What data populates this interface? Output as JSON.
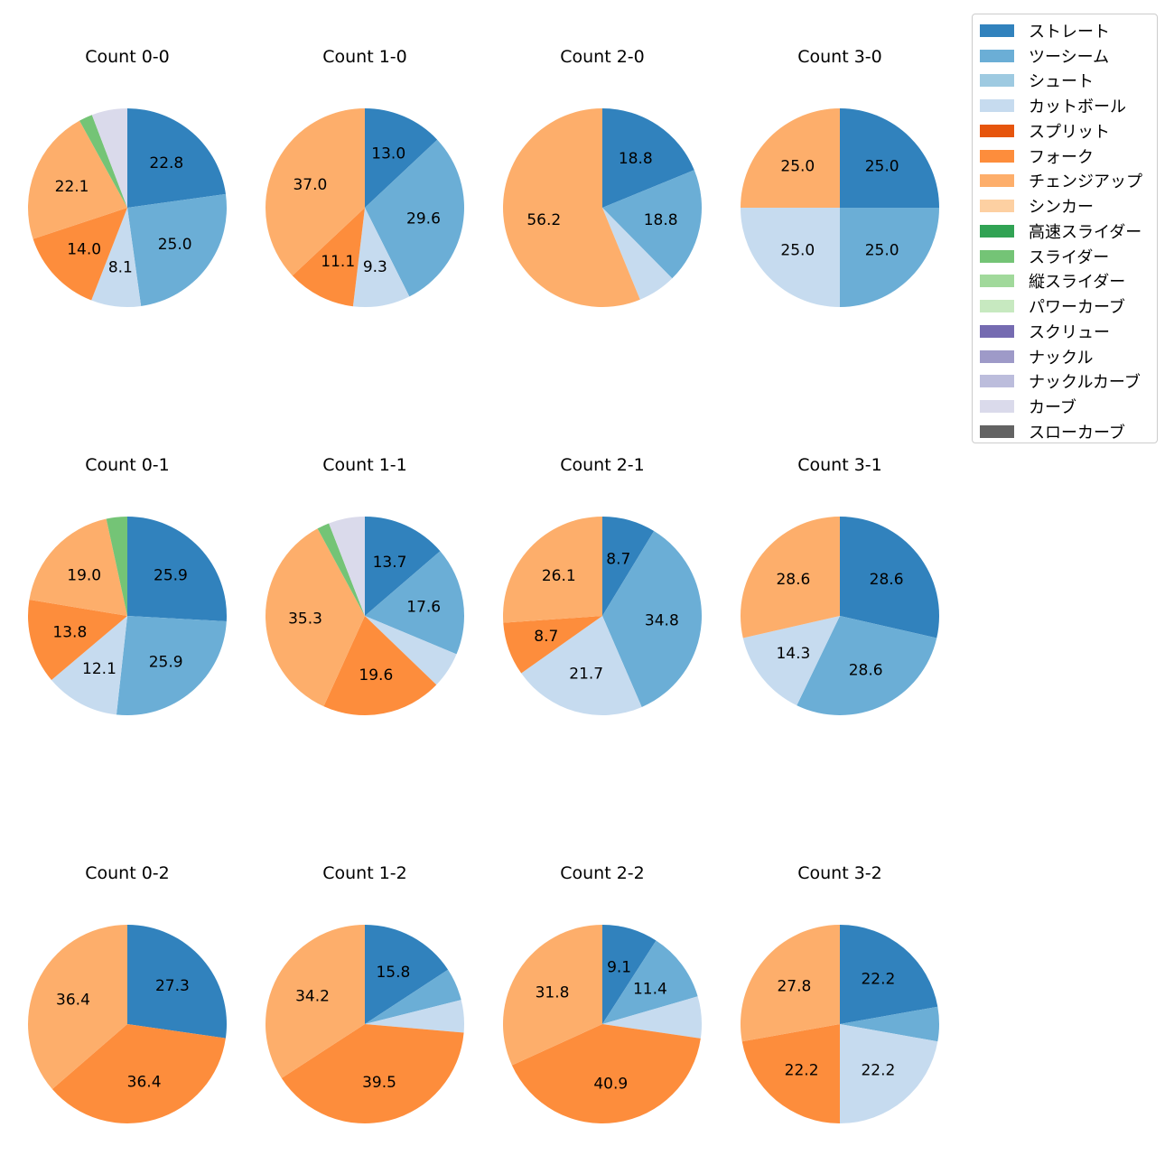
{
  "chart_data": {
    "type": "pie",
    "legend": {
      "position": "top-right",
      "entries": [
        {
          "name": "ストレート",
          "color": "#3182bd"
        },
        {
          "name": "ツーシーム",
          "color": "#6baed6"
        },
        {
          "name": "シュート",
          "color": "#9ecae1"
        },
        {
          "name": "カットボール",
          "color": "#c6dbef"
        },
        {
          "name": "スプリット",
          "color": "#e6550d"
        },
        {
          "name": "フォーク",
          "color": "#fd8d3c"
        },
        {
          "name": "チェンジアップ",
          "color": "#fdae6b"
        },
        {
          "name": "シンカー",
          "color": "#fdd0a2"
        },
        {
          "name": "高速スライダー",
          "color": "#31a354"
        },
        {
          "name": "スライダー",
          "color": "#74c476"
        },
        {
          "name": "縦スライダー",
          "color": "#a1d99b"
        },
        {
          "name": "パワーカーブ",
          "color": "#c7e9c0"
        },
        {
          "name": "スクリュー",
          "color": "#756bb1"
        },
        {
          "name": "ナックル",
          "color": "#9e9ac8"
        },
        {
          "name": "ナックルカーブ",
          "color": "#bcbddc"
        },
        {
          "name": "カーブ",
          "color": "#dadaeb"
        },
        {
          "name": "スローカーブ",
          "color": "#636363"
        }
      ]
    },
    "charts": [
      {
        "title": "Count 0-0",
        "slices": [
          {
            "pitch": "ストレート",
            "value": 22.8,
            "label": "22.8"
          },
          {
            "pitch": "ツーシーム",
            "value": 25.0,
            "label": "25.0"
          },
          {
            "pitch": "カットボール",
            "value": 8.1,
            "label": "8.1"
          },
          {
            "pitch": "フォーク",
            "value": 14.0,
            "label": "14.0"
          },
          {
            "pitch": "チェンジアップ",
            "value": 22.1,
            "label": "22.1"
          },
          {
            "pitch": "スライダー",
            "value": 2.2,
            "label": ""
          },
          {
            "pitch": "カーブ",
            "value": 5.8,
            "label": ""
          }
        ]
      },
      {
        "title": "Count 1-0",
        "slices": [
          {
            "pitch": "ストレート",
            "value": 13.0,
            "label": "13.0"
          },
          {
            "pitch": "ツーシーム",
            "value": 29.6,
            "label": "29.6"
          },
          {
            "pitch": "カットボール",
            "value": 9.3,
            "label": "9.3"
          },
          {
            "pitch": "フォーク",
            "value": 11.1,
            "label": "11.1"
          },
          {
            "pitch": "チェンジアップ",
            "value": 37.0,
            "label": "37.0"
          }
        ]
      },
      {
        "title": "Count 2-0",
        "slices": [
          {
            "pitch": "ストレート",
            "value": 18.8,
            "label": "18.8"
          },
          {
            "pitch": "ツーシーム",
            "value": 18.8,
            "label": "18.8"
          },
          {
            "pitch": "カットボール",
            "value": 6.2,
            "label": ""
          },
          {
            "pitch": "チェンジアップ",
            "value": 56.2,
            "label": "56.2"
          }
        ]
      },
      {
        "title": "Count 3-0",
        "slices": [
          {
            "pitch": "ストレート",
            "value": 25.0,
            "label": "25.0"
          },
          {
            "pitch": "ツーシーム",
            "value": 25.0,
            "label": "25.0"
          },
          {
            "pitch": "カットボール",
            "value": 25.0,
            "label": "25.0"
          },
          {
            "pitch": "チェンジアップ",
            "value": 25.0,
            "label": "25.0"
          }
        ]
      },
      {
        "title": "Count 0-1",
        "slices": [
          {
            "pitch": "ストレート",
            "value": 25.9,
            "label": "25.9"
          },
          {
            "pitch": "ツーシーム",
            "value": 25.9,
            "label": "25.9"
          },
          {
            "pitch": "カットボール",
            "value": 12.1,
            "label": "12.1"
          },
          {
            "pitch": "フォーク",
            "value": 13.8,
            "label": "13.8"
          },
          {
            "pitch": "チェンジアップ",
            "value": 19.0,
            "label": "19.0"
          },
          {
            "pitch": "スライダー",
            "value": 3.4,
            "label": ""
          }
        ]
      },
      {
        "title": "Count 1-1",
        "slices": [
          {
            "pitch": "ストレート",
            "value": 13.7,
            "label": "13.7"
          },
          {
            "pitch": "ツーシーム",
            "value": 17.6,
            "label": "17.6"
          },
          {
            "pitch": "カットボール",
            "value": 5.9,
            "label": ""
          },
          {
            "pitch": "フォーク",
            "value": 19.6,
            "label": "19.6"
          },
          {
            "pitch": "チェンジアップ",
            "value": 35.3,
            "label": "35.3"
          },
          {
            "pitch": "スライダー",
            "value": 2.0,
            "label": ""
          },
          {
            "pitch": "カーブ",
            "value": 5.9,
            "label": ""
          }
        ]
      },
      {
        "title": "Count 2-1",
        "slices": [
          {
            "pitch": "ストレート",
            "value": 8.7,
            "label": "8.7"
          },
          {
            "pitch": "ツーシーム",
            "value": 34.8,
            "label": "34.8"
          },
          {
            "pitch": "カットボール",
            "value": 21.7,
            "label": "21.7"
          },
          {
            "pitch": "フォーク",
            "value": 8.7,
            "label": "8.7"
          },
          {
            "pitch": "チェンジアップ",
            "value": 26.1,
            "label": "26.1"
          }
        ]
      },
      {
        "title": "Count 3-1",
        "slices": [
          {
            "pitch": "ストレート",
            "value": 28.6,
            "label": "28.6"
          },
          {
            "pitch": "ツーシーム",
            "value": 28.6,
            "label": "28.6"
          },
          {
            "pitch": "カットボール",
            "value": 14.3,
            "label": "14.3"
          },
          {
            "pitch": "チェンジアップ",
            "value": 28.6,
            "label": "28.6"
          }
        ]
      },
      {
        "title": "Count 0-2",
        "slices": [
          {
            "pitch": "ストレート",
            "value": 27.3,
            "label": "27.3"
          },
          {
            "pitch": "フォーク",
            "value": 36.4,
            "label": "36.4"
          },
          {
            "pitch": "チェンジアップ",
            "value": 36.4,
            "label": "36.4"
          }
        ]
      },
      {
        "title": "Count 1-2",
        "slices": [
          {
            "pitch": "ストレート",
            "value": 15.8,
            "label": "15.8"
          },
          {
            "pitch": "ツーシーム",
            "value": 5.3,
            "label": ""
          },
          {
            "pitch": "カットボール",
            "value": 5.3,
            "label": ""
          },
          {
            "pitch": "フォーク",
            "value": 39.5,
            "label": "39.5"
          },
          {
            "pitch": "チェンジアップ",
            "value": 34.2,
            "label": "34.2"
          }
        ]
      },
      {
        "title": "Count 2-2",
        "slices": [
          {
            "pitch": "ストレート",
            "value": 9.1,
            "label": "9.1"
          },
          {
            "pitch": "ツーシーム",
            "value": 11.4,
            "label": "11.4"
          },
          {
            "pitch": "カットボール",
            "value": 6.8,
            "label": ""
          },
          {
            "pitch": "フォーク",
            "value": 40.9,
            "label": "40.9"
          },
          {
            "pitch": "チェンジアップ",
            "value": 31.8,
            "label": "31.8"
          }
        ]
      },
      {
        "title": "Count 3-2",
        "slices": [
          {
            "pitch": "ストレート",
            "value": 22.2,
            "label": "22.2"
          },
          {
            "pitch": "ツーシーム",
            "value": 5.6,
            "label": ""
          },
          {
            "pitch": "カットボール",
            "value": 22.2,
            "label": "22.2"
          },
          {
            "pitch": "フォーク",
            "value": 22.2,
            "label": "22.2"
          },
          {
            "pitch": "チェンジアップ",
            "value": 27.8,
            "label": "27.8"
          }
        ]
      }
    ]
  }
}
